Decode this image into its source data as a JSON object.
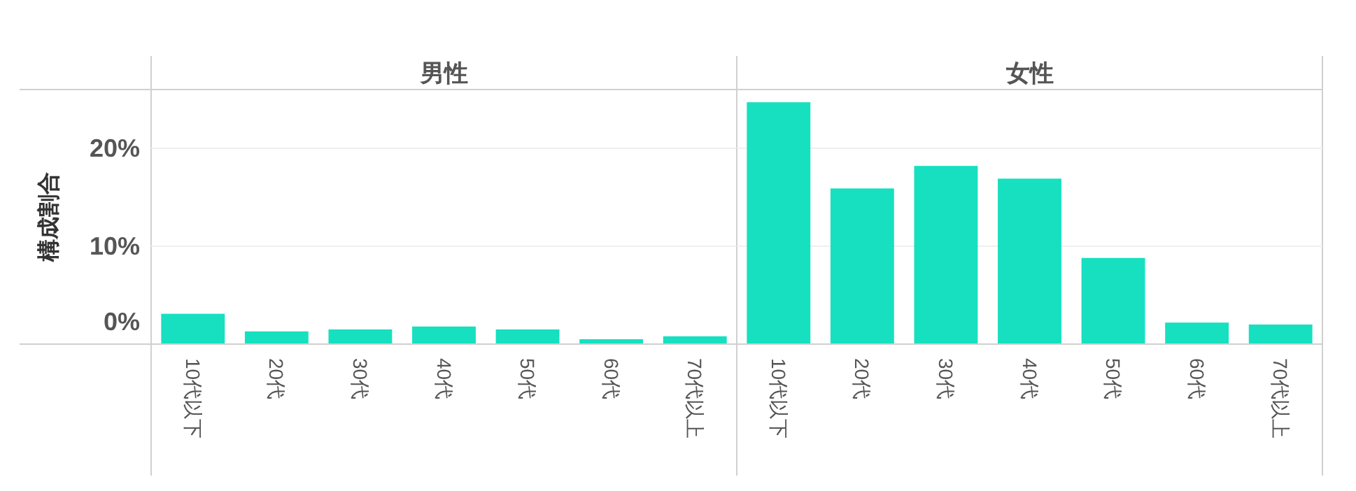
{
  "chart_data": [
    {
      "type": "bar",
      "title": "男性",
      "ylabel": "構成割合",
      "categories": [
        "10代以下",
        "20代",
        "30代",
        "40代",
        "50代",
        "60代",
        "70代以上"
      ],
      "values": [
        3.1,
        1.3,
        1.5,
        1.8,
        1.5,
        0.5,
        0.8
      ],
      "color": "#16e0c0",
      "ylim": [
        0,
        26
      ],
      "yticks": [
        {
          "value": 0,
          "label": "0%"
        },
        {
          "value": 10,
          "label": "10%"
        },
        {
          "value": 20,
          "label": "20%"
        }
      ],
      "grid": "y"
    },
    {
      "type": "bar",
      "title": "女性",
      "categories": [
        "10代以下",
        "20代",
        "30代",
        "40代",
        "50代",
        "60代",
        "70代以上"
      ],
      "values": [
        24.7,
        15.9,
        18.2,
        16.9,
        8.8,
        2.2,
        2.0
      ],
      "color": "#16e0c0",
      "ylim": [
        0,
        26
      ],
      "yticks": [
        {
          "value": 0,
          "label": null
        },
        {
          "value": 10,
          "label": null
        },
        {
          "value": 20,
          "label": null
        }
      ],
      "grid": "y",
      "tick_labels": "x"
    }
  ]
}
